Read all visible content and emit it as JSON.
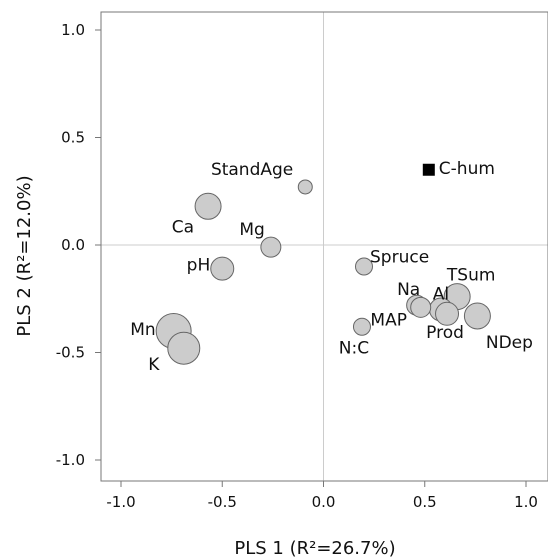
{
  "chart_data": {
    "type": "scatter",
    "xlabel": "PLS 1 (R²=26.7%)",
    "ylabel": "PLS 2 (R²=12.0%)",
    "xlim": [
      -1.1,
      1.1
    ],
    "ylim": [
      -1.15,
      1.15
    ],
    "xticks": [
      "-1.0",
      "-0.5",
      "0.0",
      "0.5",
      "1.0"
    ],
    "yticks": [
      "1.0",
      "0.5",
      "0.0",
      "-0.5",
      "-1.0"
    ],
    "reference_lines": {
      "x": 0,
      "y": 0
    },
    "grid": false,
    "colors": {
      "point_fill": "#cccccc",
      "point_stroke": "#666666",
      "square_fill": "#000000",
      "reference_line": "#cccccc",
      "frame": "#777777"
    },
    "points": [
      {
        "label": "C-hum",
        "x": 0.52,
        "y": 0.35,
        "shape": "square",
        "size": 1
      },
      {
        "label": "StandAge",
        "x": -0.09,
        "y": 0.27,
        "shape": "circle",
        "size": 1
      },
      {
        "label": "Ca",
        "x": -0.57,
        "y": 0.18,
        "shape": "circle",
        "size": 3
      },
      {
        "label": "Mg",
        "x": -0.26,
        "y": -0.01,
        "shape": "circle",
        "size": 2
      },
      {
        "label": "pH",
        "x": -0.5,
        "y": -0.11,
        "shape": "circle",
        "size": 2.5
      },
      {
        "label": "Spruce",
        "x": 0.2,
        "y": -0.1,
        "shape": "circle",
        "size": 1.5
      },
      {
        "label": "Na",
        "x": 0.46,
        "y": -0.28,
        "shape": "circle",
        "size": 2
      },
      {
        "label": "MAP",
        "x": 0.48,
        "y": -0.29,
        "shape": "circle",
        "size": 2
      },
      {
        "label": "Al",
        "x": 0.58,
        "y": -0.3,
        "shape": "circle",
        "size": 2.5
      },
      {
        "label": "Prod",
        "x": 0.61,
        "y": -0.32,
        "shape": "circle",
        "size": 2.5
      },
      {
        "label": "TSum",
        "x": 0.66,
        "y": -0.24,
        "shape": "circle",
        "size": 3
      },
      {
        "label": "NDep",
        "x": 0.76,
        "y": -0.33,
        "shape": "circle",
        "size": 3
      },
      {
        "label": "N:C",
        "x": 0.19,
        "y": -0.38,
        "shape": "circle",
        "size": 1.5
      },
      {
        "label": "Mn",
        "x": -0.74,
        "y": -0.4,
        "shape": "circle",
        "size": 4.5
      },
      {
        "label": "K",
        "x": -0.69,
        "y": -0.48,
        "shape": "circle",
        "size": 4
      }
    ]
  }
}
